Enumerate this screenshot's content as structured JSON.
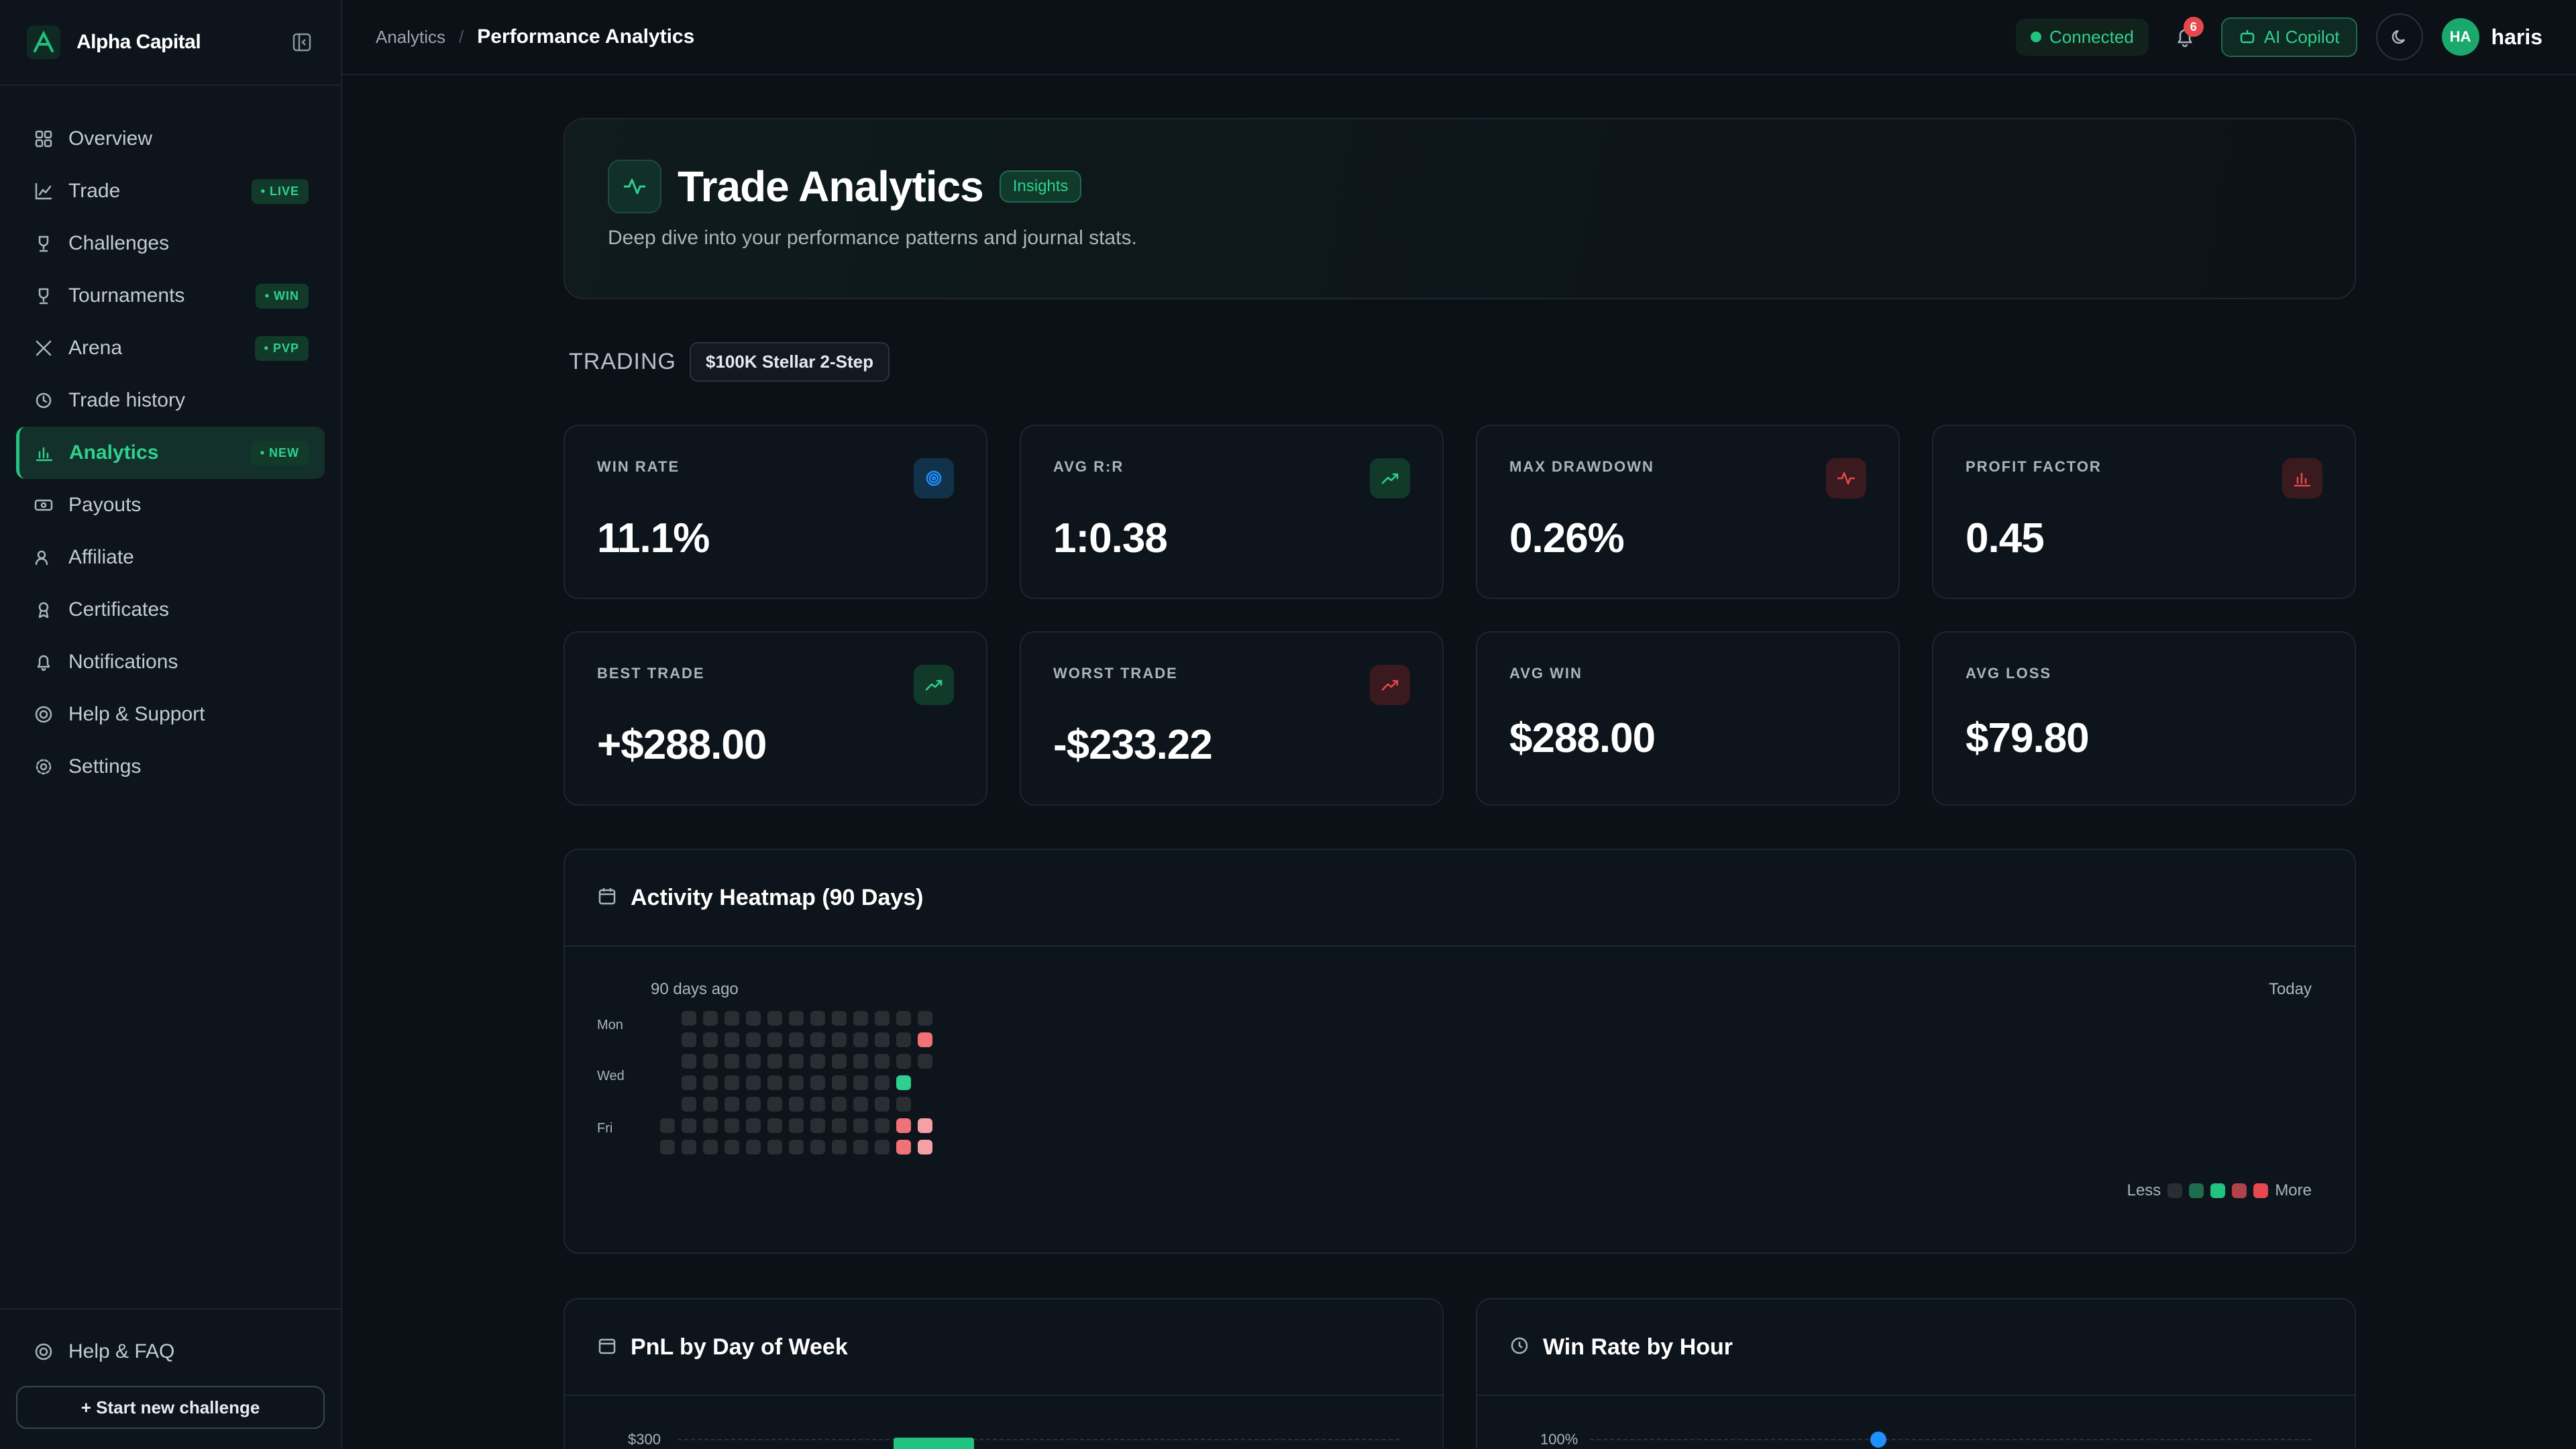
{
  "brand": {
    "name": "Alpha Capital"
  },
  "sidebar": {
    "items": [
      {
        "label": "Overview",
        "icon": "grid-icon",
        "badge": ""
      },
      {
        "label": "Trade",
        "icon": "chart-icon",
        "badge": "• LIVE"
      },
      {
        "label": "Challenges",
        "icon": "trophy-icon",
        "badge": ""
      },
      {
        "label": "Tournaments",
        "icon": "trophy-icon",
        "badge": "• WIN"
      },
      {
        "label": "Arena",
        "icon": "swords-icon",
        "badge": "• PVP"
      },
      {
        "label": "Trade history",
        "icon": "history-icon",
        "badge": ""
      },
      {
        "label": "Analytics",
        "icon": "bar-chart-icon",
        "badge": "• NEW",
        "active": true
      },
      {
        "label": "Payouts",
        "icon": "cash-icon",
        "badge": ""
      },
      {
        "label": "Affiliate",
        "icon": "users-icon",
        "badge": ""
      },
      {
        "label": "Certificates",
        "icon": "award-icon",
        "badge": ""
      },
      {
        "label": "Notifications",
        "icon": "bell-icon",
        "badge": ""
      },
      {
        "label": "Help & Support",
        "icon": "lifebuoy-icon",
        "badge": ""
      },
      {
        "label": "Settings",
        "icon": "gear-icon",
        "badge": ""
      }
    ],
    "help_faq": "Help & FAQ",
    "start_challenge": "+ Start new challenge"
  },
  "topbar": {
    "breadcrumb_parent": "Analytics",
    "breadcrumb_current": "Performance Analytics",
    "connection_status": "Connected",
    "notifications_count": "6",
    "copilot_label": "AI Copilot",
    "avatar_initials": "HA",
    "username": "haris"
  },
  "hero": {
    "title": "Trade Analytics",
    "pill": "Insights",
    "subtitle": "Deep dive into your performance patterns and journal stats."
  },
  "trading": {
    "label": "TRADING",
    "account": "$100K Stellar 2-Step"
  },
  "stats": [
    {
      "label": "WIN RATE",
      "value": "11.1%",
      "icon": "target-icon",
      "tone": "blue"
    },
    {
      "label": "AVG R:R",
      "value": "1:0.38",
      "icon": "trending-up-icon",
      "tone": "green"
    },
    {
      "label": "MAX DRAWDOWN",
      "value": "0.26%",
      "icon": "activity-icon",
      "tone": "red"
    },
    {
      "label": "PROFIT FACTOR",
      "value": "0.45",
      "icon": "bar-chart-icon",
      "tone": "red"
    },
    {
      "label": "BEST TRADE",
      "value": "+$288.00",
      "icon": "trending-up-icon",
      "tone": "green"
    },
    {
      "label": "WORST TRADE",
      "value": "-$233.22",
      "icon": "trending-up-icon",
      "tone": "red"
    },
    {
      "label": "AVG WIN",
      "value": "$288.00",
      "icon": "",
      "tone": ""
    },
    {
      "label": "AVG LOSS",
      "value": "$79.80",
      "icon": "",
      "tone": ""
    }
  ],
  "heatmap": {
    "title": "Activity Heatmap (90 Days)",
    "start_label": "90 days ago",
    "end_label": "Today",
    "day_labels": [
      "Mon",
      "Wed",
      "Fri"
    ],
    "legend_less": "Less",
    "legend_more": "More",
    "legend_colors": [
      "#2a2e33",
      "#1f6b4d",
      "#22c37e",
      "#b2424a",
      "#e5484d"
    ],
    "highlights": [
      {
        "week": 12,
        "day": 1,
        "color": "#f07178"
      },
      {
        "week": 11,
        "day": 3,
        "color": "#2fd08f"
      },
      {
        "week": 11,
        "day": 5,
        "color": "#f07178"
      },
      {
        "week": 12,
        "day": 5,
        "color": "#f5a0a5"
      },
      {
        "week": 11,
        "day": 6,
        "color": "#f07178"
      },
      {
        "week": 12,
        "day": 6,
        "color": "#f5a0a5"
      }
    ]
  },
  "pnl_panel": {
    "title": "PnL by Day of Week",
    "first_tick": "$300"
  },
  "winrate_panel": {
    "title": "Win Rate by Hour",
    "first_tick": "100%"
  },
  "colors": {
    "accent": "#22c37e",
    "danger": "#e5484d",
    "info": "#1e90ff"
  }
}
